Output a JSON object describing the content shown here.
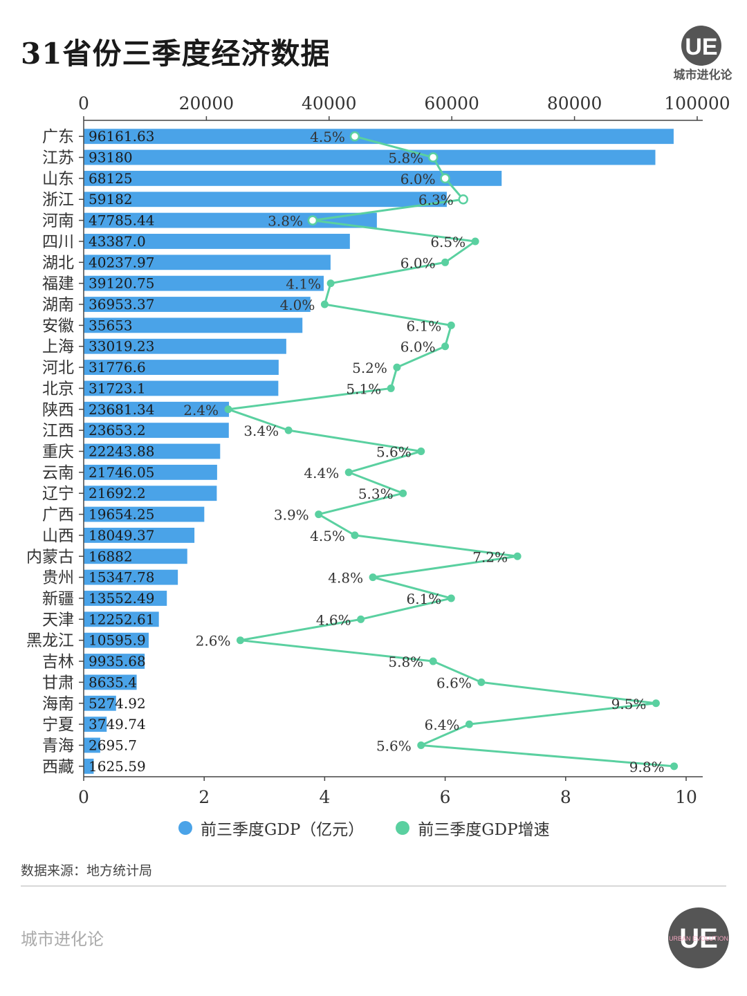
{
  "title": "31省份三季度经济数据",
  "logo": {
    "mark": "UE",
    "name": "城市进化论",
    "sub": "URBAN EVOLUTION"
  },
  "colors": {
    "bar": "#4aa3e8",
    "line": "#5ad0a0",
    "text": "#333333"
  },
  "legend": {
    "gdp": "前三季度GDP（亿元）",
    "growth": "前三季度GDP增速"
  },
  "source": "数据来源：地方统计局",
  "footer_brand": "城市进化论",
  "chart_data": {
    "type": "bar",
    "orientation": "horizontal",
    "title": "31省份三季度经济数据",
    "categories": [
      "广东",
      "江苏",
      "山东",
      "浙江",
      "河南",
      "四川",
      "湖北",
      "福建",
      "湖南",
      "安徽",
      "上海",
      "河北",
      "北京",
      "陕西",
      "江西",
      "重庆",
      "云南",
      "辽宁",
      "广西",
      "山西",
      "内蒙古",
      "贵州",
      "新疆",
      "天津",
      "黑龙江",
      "吉林",
      "甘肃",
      "海南",
      "宁夏",
      "青海",
      "西藏"
    ],
    "series": [
      {
        "name": "前三季度GDP（亿元）",
        "type": "bar",
        "axis": "top",
        "values": [
          96161.63,
          93180,
          68125,
          59182,
          47785.44,
          43387.0,
          40237.97,
          39120.75,
          36953.37,
          35653,
          33019.23,
          31776.6,
          31723.1,
          23681.34,
          23653.2,
          22243.88,
          21746.05,
          21692.2,
          19654.25,
          18049.37,
          16882,
          15347.78,
          13552.49,
          12252.61,
          10595.9,
          9935.68,
          8635.4,
          5274.92,
          3749.74,
          2695.7,
          1625.59
        ],
        "labels": [
          "96161.63",
          "93180",
          "68125",
          "59182",
          "47785.44",
          "43387.0",
          "40237.97",
          "39120.75",
          "36953.37",
          "35653",
          "33019.23",
          "31776.6",
          "31723.1",
          "23681.34",
          "23653.2",
          "22243.88",
          "21746.05",
          "21692.2",
          "19654.25",
          "18049.37",
          "16882",
          "15347.78",
          "13552.49",
          "12252.61",
          "10595.9",
          "9935.68",
          "8635.4",
          "5274.92",
          "3749.74",
          "2695.7",
          "1625.59"
        ]
      },
      {
        "name": "前三季度GDP增速",
        "type": "line",
        "axis": "bottom",
        "values": [
          4.5,
          5.8,
          6.0,
          6.3,
          3.8,
          6.5,
          6.0,
          4.1,
          4.0,
          6.1,
          6.0,
          5.2,
          5.1,
          2.4,
          3.4,
          5.6,
          4.4,
          5.3,
          3.9,
          4.5,
          7.2,
          4.8,
          6.1,
          4.6,
          2.6,
          5.8,
          6.6,
          9.5,
          6.4,
          5.6,
          9.8
        ],
        "labels": [
          "4.5%",
          "5.8%",
          "6.0%",
          "6.3%",
          "3.8%",
          "6.5%",
          "6.0%",
          "4.1%",
          "4.0%",
          "6.1%",
          "6.0%",
          "5.2%",
          "5.1%",
          "2.4%",
          "3.4%",
          "5.6%",
          "4.4%",
          "5.3%",
          "3.9%",
          "4.5%",
          "7.2%",
          "4.8%",
          "6.1%",
          "4.6%",
          "2.6%",
          "5.8%",
          "6.6%",
          "9.5%",
          "6.4%",
          "5.6%",
          "9.8%"
        ]
      }
    ],
    "x_top": {
      "range": [
        0,
        100000
      ],
      "ticks": [
        "0",
        "20000",
        "40000",
        "60000",
        "80000",
        "100000"
      ],
      "tick_values": [
        0,
        20000,
        40000,
        60000,
        80000,
        100000
      ]
    },
    "x_bottom": {
      "range": [
        0,
        10
      ],
      "ticks": [
        "0",
        "2",
        "4",
        "6",
        "8",
        "10"
      ],
      "tick_values": [
        0,
        2,
        4,
        6,
        8,
        10
      ]
    },
    "legend_position": "bottom"
  }
}
